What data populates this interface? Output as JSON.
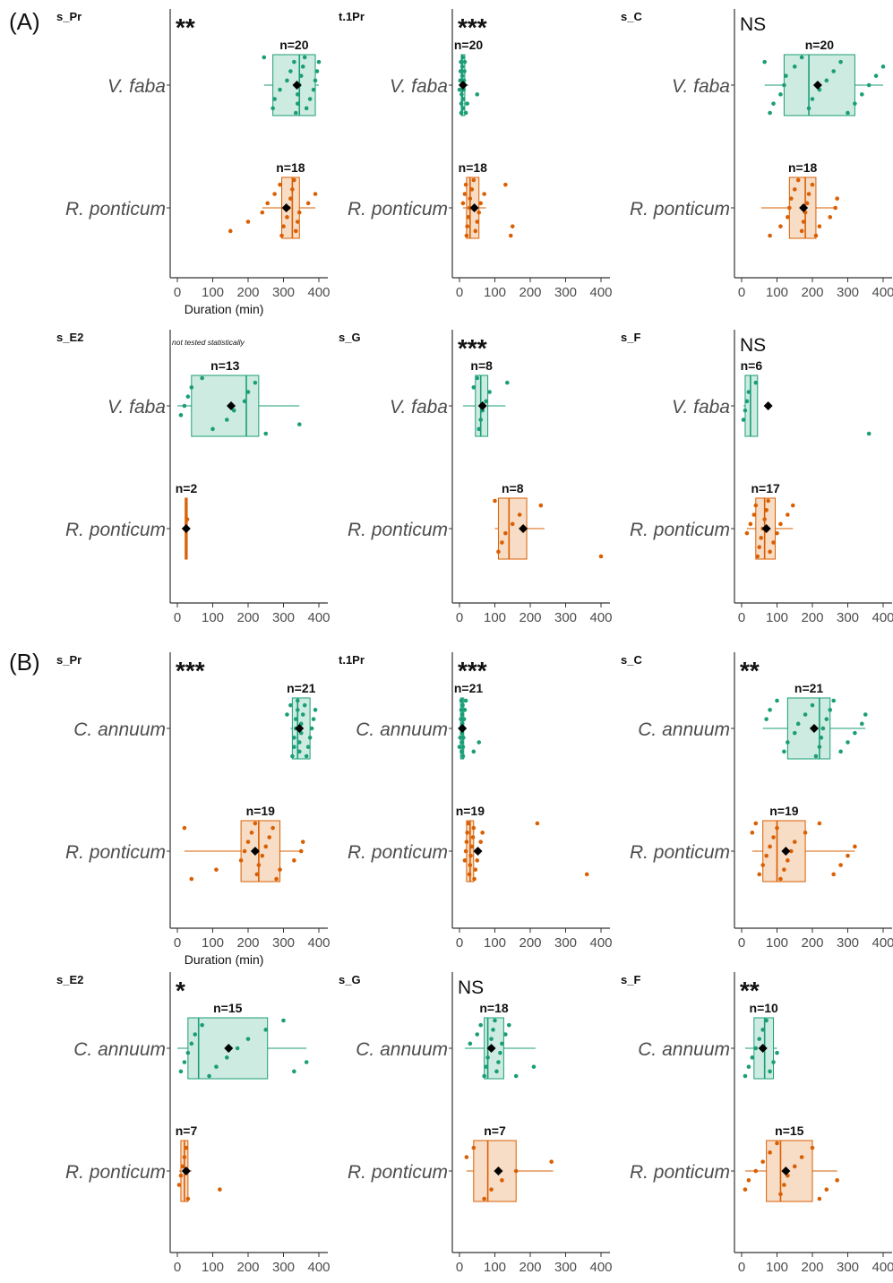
{
  "figure": {
    "sections": [
      {
        "label": "(A)"
      },
      {
        "label": "(B)"
      }
    ]
  },
  "colors": {
    "green": "#1b9e77",
    "green_fill": "#cdebe1",
    "orange": "#d95f02",
    "orange_fill": "#f7dcc6",
    "axis": "#333333",
    "tick_label": "#4d4d4d",
    "mean_marker": "#000000"
  },
  "chart_data": [
    {
      "type": "boxplot",
      "section": "(A)",
      "panel": "s_Pr",
      "significance": "**",
      "note": "",
      "xlabel": "Duration (min)",
      "xticks": [
        0,
        100,
        200,
        300,
        400
      ],
      "xlim": [
        0,
        400
      ],
      "groups": [
        {
          "name": "V. faba",
          "color": "green",
          "n_label": "n=20",
          "min": 245,
          "q1": 270,
          "median": 345,
          "q3": 390,
          "max": 400,
          "mean": 338,
          "points": [
            245,
            270,
            275,
            290,
            310,
            320,
            330,
            335,
            340,
            340,
            345,
            350,
            355,
            360,
            365,
            375,
            385,
            390,
            395,
            400
          ]
        },
        {
          "name": "R. ponticum",
          "color": "orange",
          "n_label": "n=18",
          "min": 240,
          "q1": 295,
          "median": 325,
          "q3": 345,
          "max": 390,
          "mean": 308,
          "points": [
            150,
            200,
            240,
            255,
            275,
            290,
            295,
            300,
            310,
            315,
            320,
            325,
            330,
            335,
            340,
            345,
            370,
            390
          ]
        }
      ]
    },
    {
      "type": "boxplot",
      "section": "(A)",
      "panel": "t.1Pr",
      "significance": "***",
      "note": "",
      "xlabel": "",
      "xticks": [
        0,
        100,
        200,
        300,
        400
      ],
      "xlim": [
        0,
        400
      ],
      "groups": [
        {
          "name": "V. faba",
          "color": "green",
          "n_label": "n=20",
          "min": 0,
          "q1": 5,
          "median": 8,
          "q3": 15,
          "max": 25,
          "mean": 10,
          "points": [
            0,
            2,
            3,
            4,
            5,
            5,
            6,
            7,
            8,
            8,
            9,
            10,
            11,
            12,
            13,
            14,
            15,
            18,
            22,
            50
          ]
        },
        {
          "name": "R. ponticum",
          "color": "orange",
          "n_label": "n=18",
          "min": 10,
          "q1": 20,
          "median": 30,
          "q3": 55,
          "max": 75,
          "mean": 42,
          "points": [
            10,
            15,
            18,
            20,
            22,
            25,
            28,
            30,
            35,
            40,
            45,
            50,
            55,
            60,
            70,
            130,
            145,
            150
          ]
        }
      ]
    },
    {
      "type": "boxplot",
      "section": "(A)",
      "panel": "s_C",
      "significance": "NS",
      "note": "",
      "xlabel": "",
      "xticks": [
        0,
        100,
        200,
        300,
        400
      ],
      "xlim": [
        0,
        400
      ],
      "groups": [
        {
          "name": "V. faba",
          "color": "green",
          "n_label": "n=20",
          "min": 65,
          "q1": 120,
          "median": 190,
          "q3": 320,
          "max": 400,
          "mean": 215,
          "points": [
            65,
            80,
            90,
            110,
            120,
            125,
            150,
            170,
            190,
            200,
            220,
            240,
            260,
            280,
            300,
            320,
            340,
            360,
            380,
            400
          ]
        },
        {
          "name": "R. ponticum",
          "color": "orange",
          "n_label": "n=18",
          "min": 55,
          "q1": 135,
          "median": 180,
          "q3": 210,
          "max": 270,
          "mean": 175,
          "points": [
            80,
            110,
            130,
            135,
            140,
            150,
            160,
            170,
            175,
            180,
            185,
            190,
            200,
            210,
            220,
            250,
            265,
            270
          ]
        }
      ]
    },
    {
      "type": "boxplot",
      "section": "(A)",
      "panel": "s_E2",
      "significance": "",
      "note": "not tested statistically",
      "xlabel": "",
      "xticks": [
        0,
        100,
        200,
        300,
        400
      ],
      "xlim": [
        0,
        400
      ],
      "groups": [
        {
          "name": "V. faba",
          "color": "green",
          "n_label": "n=13",
          "min": 0,
          "q1": 40,
          "median": 195,
          "q3": 230,
          "max": 345,
          "mean": 152,
          "points": [
            10,
            20,
            30,
            40,
            70,
            100,
            140,
            160,
            190,
            200,
            220,
            250,
            345
          ]
        },
        {
          "name": "R. ponticum",
          "color": "orange",
          "n_label": "n=2",
          "min": 22,
          "q1": 22,
          "median": 25,
          "q3": 28,
          "max": 28,
          "mean": 25,
          "points": [
            22,
            28
          ]
        }
      ]
    },
    {
      "type": "boxplot",
      "section": "(A)",
      "panel": "s_G",
      "significance": "***",
      "note": "",
      "xlabel": "",
      "xticks": [
        0,
        100,
        200,
        300,
        400
      ],
      "xlim": [
        0,
        400
      ],
      "groups": [
        {
          "name": "V. faba",
          "color": "green",
          "n_label": "n=8",
          "min": 10,
          "q1": 45,
          "median": 60,
          "q3": 80,
          "max": 130,
          "mean": 65,
          "points": [
            40,
            50,
            55,
            60,
            65,
            75,
            85,
            135
          ]
        },
        {
          "name": "R. ponticum",
          "color": "orange",
          "n_label": "n=8",
          "min": 100,
          "q1": 110,
          "median": 140,
          "q3": 190,
          "max": 240,
          "mean": 180,
          "points": [
            100,
            110,
            120,
            130,
            150,
            170,
            230,
            400
          ]
        }
      ]
    },
    {
      "type": "boxplot",
      "section": "(A)",
      "panel": "s_F",
      "significance": "NS",
      "note": "",
      "xlabel": "",
      "xticks": [
        0,
        100,
        200,
        300,
        400
      ],
      "xlim": [
        0,
        400
      ],
      "groups": [
        {
          "name": "V. faba",
          "color": "green",
          "n_label": "n=6",
          "min": 5,
          "q1": 10,
          "median": 25,
          "q3": 45,
          "max": 45,
          "mean": 75,
          "points": [
            5,
            10,
            15,
            20,
            40,
            360
          ]
        },
        {
          "name": "R. ponticum",
          "color": "orange",
          "n_label": "n=17",
          "min": 15,
          "q1": 40,
          "median": 65,
          "q3": 95,
          "max": 145,
          "mean": 70,
          "points": [
            15,
            25,
            35,
            40,
            45,
            50,
            55,
            60,
            65,
            70,
            75,
            80,
            90,
            100,
            110,
            130,
            145
          ]
        }
      ]
    },
    {
      "type": "boxplot",
      "section": "(B)",
      "panel": "s_Pr",
      "significance": "***",
      "note": "",
      "xlabel": "Duration (min)",
      "xticks": [
        0,
        100,
        200,
        300,
        400
      ],
      "xlim": [
        0,
        400
      ],
      "groups": [
        {
          "name": "C. annuum",
          "color": "green",
          "n_label": "n=21",
          "min": 320,
          "q1": 325,
          "median": 340,
          "q3": 375,
          "max": 380,
          "mean": 345,
          "points": [
            310,
            320,
            325,
            330,
            330,
            335,
            335,
            340,
            340,
            345,
            345,
            350,
            350,
            355,
            360,
            365,
            370,
            375,
            380,
            385,
            390
          ]
        },
        {
          "name": "R. ponticum",
          "color": "orange",
          "n_label": "n=19",
          "min": 20,
          "q1": 180,
          "median": 230,
          "q3": 290,
          "max": 350,
          "mean": 220,
          "points": [
            20,
            40,
            110,
            180,
            190,
            200,
            210,
            220,
            225,
            230,
            240,
            250,
            260,
            270,
            280,
            290,
            330,
            350,
            355
          ]
        }
      ]
    },
    {
      "type": "boxplot",
      "section": "(B)",
      "panel": "t.1Pr",
      "significance": "***",
      "note": "",
      "xlabel": "",
      "xticks": [
        0,
        100,
        200,
        300,
        400
      ],
      "xlim": [
        0,
        400
      ],
      "groups": [
        {
          "name": "C. annuum",
          "color": "green",
          "n_label": "n=21",
          "min": 0,
          "q1": 3,
          "median": 8,
          "q3": 12,
          "max": 20,
          "mean": 8,
          "points": [
            0,
            2,
            3,
            4,
            5,
            5,
            6,
            6,
            7,
            8,
            8,
            9,
            10,
            10,
            11,
            12,
            13,
            15,
            18,
            40,
            55
          ]
        },
        {
          "name": "R. ponticum",
          "color": "orange",
          "n_label": "n=19",
          "min": 15,
          "q1": 20,
          "median": 30,
          "q3": 40,
          "max": 60,
          "mean": 52,
          "points": [
            15,
            18,
            20,
            22,
            25,
            28,
            30,
            32,
            35,
            38,
            40,
            42,
            45,
            50,
            55,
            60,
            65,
            220,
            360
          ]
        }
      ]
    },
    {
      "type": "boxplot",
      "section": "(B)",
      "panel": "s_C",
      "significance": "**",
      "note": "",
      "xlabel": "",
      "xticks": [
        0,
        100,
        200,
        300,
        400
      ],
      "xlim": [
        0,
        400
      ],
      "groups": [
        {
          "name": "C. annuum",
          "color": "green",
          "n_label": "n=21",
          "min": 60,
          "q1": 130,
          "median": 220,
          "q3": 250,
          "max": 350,
          "mean": 205,
          "points": [
            70,
            80,
            100,
            120,
            130,
            150,
            160,
            180,
            200,
            210,
            220,
            225,
            230,
            240,
            250,
            260,
            280,
            300,
            320,
            340,
            350
          ]
        },
        {
          "name": "R. ponticum",
          "color": "orange",
          "n_label": "n=19",
          "min": 30,
          "q1": 60,
          "median": 100,
          "q3": 180,
          "max": 320,
          "mean": 125,
          "points": [
            30,
            40,
            50,
            60,
            70,
            80,
            90,
            100,
            110,
            120,
            130,
            140,
            150,
            180,
            220,
            260,
            280,
            300,
            320
          ]
        }
      ]
    },
    {
      "type": "boxplot",
      "section": "(B)",
      "panel": "s_E2",
      "significance": "*",
      "note": "",
      "xlabel": "",
      "xticks": [
        0,
        100,
        200,
        300,
        400
      ],
      "xlim": [
        0,
        400
      ],
      "groups": [
        {
          "name": "C. annuum",
          "color": "green",
          "n_label": "n=15",
          "min": 0,
          "q1": 30,
          "median": 60,
          "q3": 255,
          "max": 365,
          "mean": 145,
          "points": [
            10,
            20,
            30,
            40,
            50,
            70,
            90,
            110,
            140,
            170,
            200,
            250,
            300,
            330,
            365
          ]
        },
        {
          "name": "R. ponticum",
          "color": "orange",
          "n_label": "n=7",
          "min": 5,
          "q1": 10,
          "median": 20,
          "q3": 30,
          "max": 40,
          "mean": 25,
          "points": [
            5,
            10,
            15,
            20,
            25,
            30,
            120
          ]
        }
      ]
    },
    {
      "type": "boxplot",
      "section": "(B)",
      "panel": "s_G",
      "significance": "NS",
      "note": "",
      "xlabel": "",
      "xticks": [
        0,
        100,
        200,
        300,
        400
      ],
      "xlim": [
        0,
        400
      ],
      "groups": [
        {
          "name": "C. annuum",
          "color": "green",
          "n_label": "n=18",
          "min": 15,
          "q1": 70,
          "median": 80,
          "q3": 125,
          "max": 215,
          "mean": 90,
          "points": [
            30,
            50,
            60,
            70,
            75,
            80,
            85,
            90,
            95,
            100,
            105,
            110,
            115,
            120,
            130,
            140,
            160,
            210
          ]
        },
        {
          "name": "R. ponticum",
          "color": "orange",
          "n_label": "n=7",
          "min": 20,
          "q1": 40,
          "median": 80,
          "q3": 160,
          "max": 265,
          "mean": 110,
          "points": [
            20,
            40,
            70,
            90,
            120,
            160,
            260
          ]
        }
      ]
    },
    {
      "type": "boxplot",
      "section": "(B)",
      "panel": "s_F",
      "significance": "**",
      "note": "",
      "xlabel": "",
      "xticks": [
        0,
        100,
        200,
        300,
        400
      ],
      "xlim": [
        0,
        400
      ],
      "groups": [
        {
          "name": "C. annuum",
          "color": "green",
          "n_label": "n=10",
          "min": 10,
          "q1": 35,
          "median": 65,
          "q3": 90,
          "max": 100,
          "mean": 60,
          "points": [
            10,
            20,
            30,
            40,
            50,
            60,
            70,
            80,
            90,
            100
          ]
        },
        {
          "name": "R. ponticum",
          "color": "orange",
          "n_label": "n=15",
          "min": 10,
          "q1": 70,
          "median": 110,
          "q3": 200,
          "max": 270,
          "mean": 125,
          "points": [
            10,
            20,
            40,
            60,
            80,
            100,
            110,
            120,
            130,
            150,
            170,
            200,
            220,
            240,
            270
          ]
        }
      ]
    }
  ]
}
